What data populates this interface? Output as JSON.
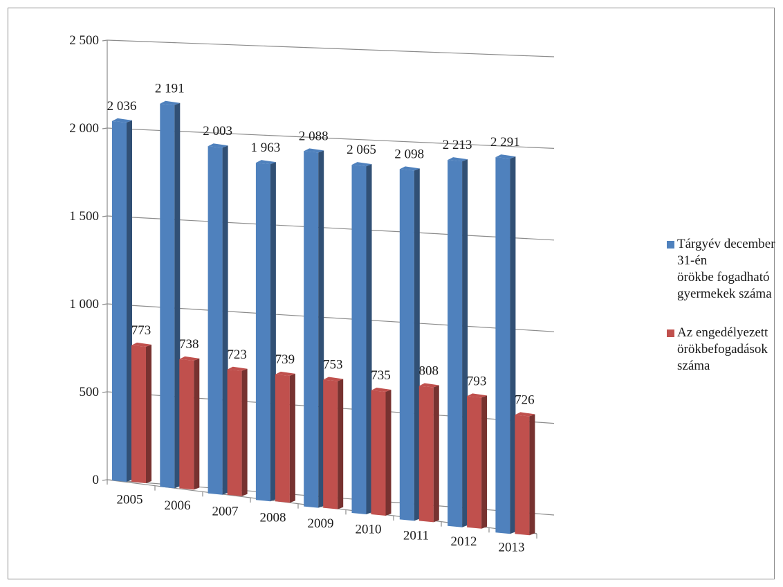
{
  "chart_data": {
    "type": "bar",
    "categories": [
      "2005",
      "2006",
      "2007",
      "2008",
      "2009",
      "2010",
      "2011",
      "2012",
      "2013"
    ],
    "series": [
      {
        "name": "Tárgyév december 31-én örökbe fogadható gyermekek száma",
        "name_lines": [
          "Tárgyév december 31-én",
          "örökbe fogadható",
          "gyermekek száma"
        ],
        "values": [
          2036,
          2191,
          2003,
          1963,
          2088,
          2065,
          2098,
          2213,
          2291
        ],
        "value_labels": [
          "2 036",
          "2 191",
          "2 003",
          "1 963",
          "2 088",
          "2 065",
          "2 098",
          "2 213",
          "2 291"
        ],
        "color": "#4f81bd"
      },
      {
        "name": "Az engedélyezett örökbefogadások száma",
        "name_lines": [
          "Az engedélyezett",
          "örökbefogadások száma"
        ],
        "values": [
          773,
          738,
          723,
          739,
          753,
          735,
          808,
          793,
          726
        ],
        "value_labels": [
          "773",
          "738",
          "723",
          "739",
          "753",
          "735",
          "808",
          "793",
          "726"
        ],
        "color": "#c0504d"
      }
    ],
    "y_ticks": [
      0,
      500,
      1000,
      1500,
      2000,
      2500
    ],
    "y_tick_labels": [
      "0",
      "500",
      "1 000",
      "1 500",
      "2 000",
      "2 500"
    ],
    "ylim": [
      0,
      2500
    ],
    "grid": true,
    "legend_position": "right",
    "style": "3d-clustered-column"
  }
}
